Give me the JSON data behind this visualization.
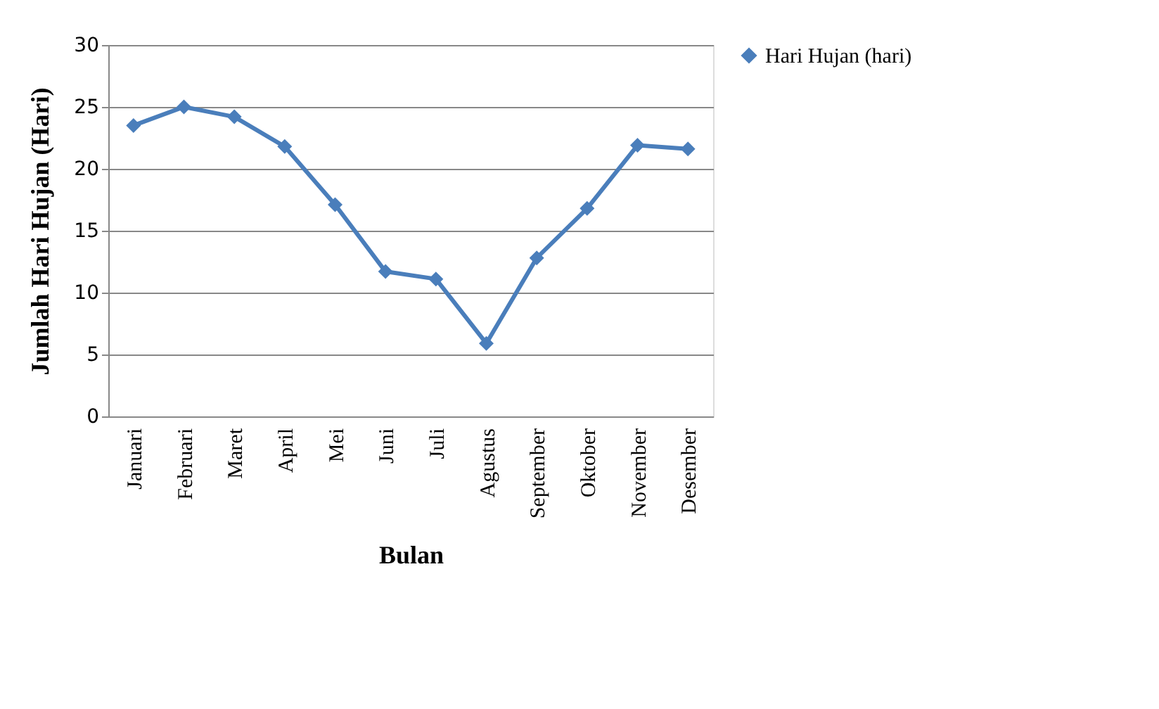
{
  "chart_data": {
    "type": "line",
    "xlabel": "Bulan",
    "ylabel": "Jumlah Hari Hujan (Hari)",
    "categories": [
      "Januari",
      "Februari",
      "Maret",
      "April",
      "Mei",
      "Juni",
      "Juli",
      "Agustus",
      "September",
      "Oktober",
      "November",
      "Desember"
    ],
    "series": [
      {
        "name": "Hari Hujan (hari)",
        "color": "#4a7ebb",
        "values": [
          23.5,
          25.0,
          24.2,
          21.8,
          17.1,
          11.7,
          11.1,
          5.9,
          12.8,
          16.8,
          21.9,
          21.6
        ]
      }
    ],
    "ylim": [
      0,
      30
    ],
    "yticks": [
      0,
      5,
      10,
      15,
      20,
      25,
      30
    ],
    "grid": "y",
    "legend": "right",
    "marker": "diamond",
    "line_style": "solid"
  }
}
